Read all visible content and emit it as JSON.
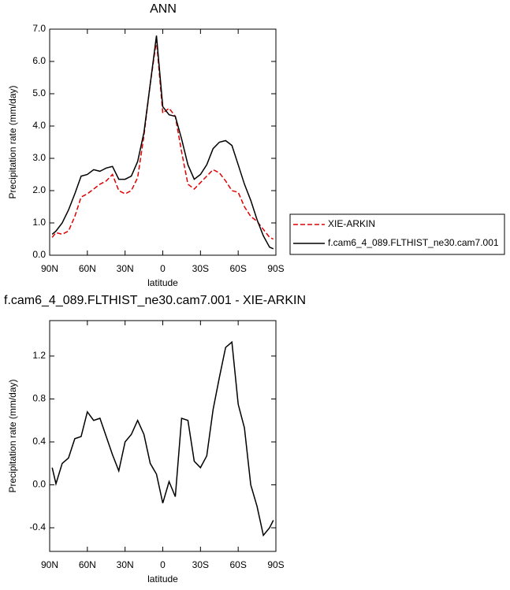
{
  "chart_data": [
    {
      "type": "line",
      "title": "ANN",
      "xlabel": "latitude",
      "ylabel": "Precipitation rate (mm/day)",
      "x": [
        88,
        85,
        80,
        75,
        70,
        65,
        60,
        55,
        50,
        45,
        40,
        35,
        30,
        25,
        20,
        15,
        10,
        5,
        0,
        -5,
        -10,
        -15,
        -20,
        -25,
        -30,
        -35,
        -40,
        -45,
        -50,
        -55,
        -60,
        -65,
        -70,
        -75,
        -80,
        -85,
        -88
      ],
      "xlim": [
        90,
        -90
      ],
      "xticks": [
        {
          "value": 90,
          "label": "90N"
        },
        {
          "value": 60,
          "label": "60N"
        },
        {
          "value": 30,
          "label": "30N"
        },
        0,
        {
          "value": -30,
          "label": "30S"
        },
        {
          "value": -60,
          "label": "60S"
        },
        {
          "value": -90,
          "label": "90S"
        }
      ],
      "ylim": [
        0,
        7
      ],
      "yticks": [
        {
          "value": 0,
          "label": "0.0"
        },
        {
          "value": 1,
          "label": "1.0"
        },
        {
          "value": 2,
          "label": "2.0"
        },
        {
          "value": 3,
          "label": "3.0"
        },
        {
          "value": 4,
          "label": "4.0"
        },
        {
          "value": 5,
          "label": "5.0"
        },
        {
          "value": 6,
          "label": "6.0"
        },
        {
          "value": 7,
          "label": "7.0"
        }
      ],
      "grid": false,
      "legend": "right",
      "series": [
        {
          "name": "XIE-ARKIN",
          "color": "#e00000",
          "dash": true,
          "values": [
            0.55,
            0.7,
            0.65,
            0.75,
            1.2,
            1.8,
            1.9,
            2.05,
            2.2,
            2.3,
            2.5,
            2.0,
            1.9,
            2.0,
            2.4,
            3.7,
            5.3,
            6.65,
            4.4,
            4.55,
            4.3,
            3.2,
            2.2,
            2.05,
            2.25,
            2.45,
            2.65,
            2.55,
            2.3,
            2.0,
            1.95,
            1.5,
            1.2,
            1.05,
            0.8,
            0.55,
            0.5
          ]
        },
        {
          "name": "f.cam6_4_089.FLTHIST_ne30.cam7.001",
          "color": "#000000",
          "dash": false,
          "values": [
            0.65,
            0.75,
            1.0,
            1.4,
            1.9,
            2.45,
            2.5,
            2.65,
            2.6,
            2.7,
            2.75,
            2.35,
            2.35,
            2.45,
            2.9,
            3.8,
            5.3,
            6.8,
            4.6,
            4.35,
            4.3,
            3.6,
            2.8,
            2.35,
            2.5,
            2.8,
            3.3,
            3.5,
            3.55,
            3.4,
            2.8,
            2.2,
            1.7,
            1.1,
            0.6,
            0.25,
            0.2
          ]
        }
      ]
    },
    {
      "type": "line",
      "title": "f.cam6_4_089.FLTHIST_ne30.cam7.001 - XIE-ARKIN",
      "xlabel": "latitude",
      "ylabel": "Precipitation rate (mm/day)",
      "x": [
        88,
        85,
        80,
        75,
        70,
        65,
        60,
        55,
        50,
        45,
        40,
        35,
        30,
        25,
        20,
        15,
        10,
        5,
        0,
        -5,
        -10,
        -15,
        -20,
        -25,
        -30,
        -35,
        -40,
        -45,
        -50,
        -55,
        -60,
        -65,
        -70,
        -75,
        -80,
        -85,
        -88
      ],
      "xlim": [
        90,
        -90
      ],
      "xticks": [
        {
          "value": 90,
          "label": "90N"
        },
        {
          "value": 60,
          "label": "60N"
        },
        {
          "value": 30,
          "label": "30N"
        },
        0,
        {
          "value": -30,
          "label": "30S"
        },
        {
          "value": -60,
          "label": "60S"
        },
        {
          "value": -90,
          "label": "90S"
        }
      ],
      "ylim": [
        -0.62,
        1.53
      ],
      "yticks": [
        -0.4,
        {
          "value": 0,
          "label": "0.0"
        },
        0.4,
        0.8,
        1.2
      ],
      "grid": false,
      "series": [
        {
          "color": "#000000",
          "dash": false,
          "values": [
            0.16,
            0.01,
            0.2,
            0.25,
            0.43,
            0.45,
            0.68,
            0.6,
            0.62,
            0.45,
            0.28,
            0.13,
            0.4,
            0.47,
            0.6,
            0.47,
            0.2,
            0.1,
            -0.17,
            0.03,
            -0.11,
            0.62,
            0.6,
            0.22,
            0.16,
            0.27,
            0.7,
            1.0,
            1.28,
            1.33,
            0.75,
            0.53,
            0.0,
            -0.2,
            -0.47,
            -0.4,
            -0.33
          ]
        }
      ]
    }
  ]
}
